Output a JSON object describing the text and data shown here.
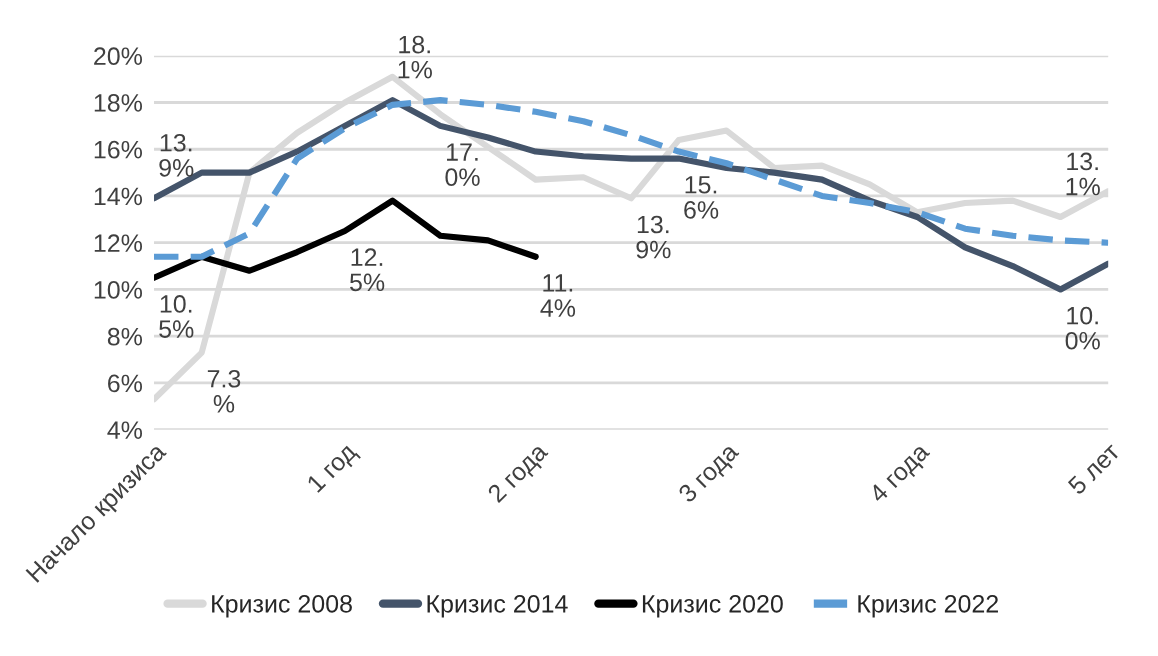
{
  "chart_data": {
    "type": "line",
    "categories": [
      "Начало кризиса",
      null,
      null,
      null,
      "1 год",
      null,
      null,
      null,
      "2 года",
      null,
      null,
      null,
      "3 года",
      null,
      null,
      null,
      "4 года",
      null,
      null,
      null,
      "5 лет"
    ],
    "ylim": [
      4,
      20
    ],
    "yticks": [
      {
        "value": 4,
        "label": "4%"
      },
      {
        "value": 6,
        "label": "6%"
      },
      {
        "value": 8,
        "label": "8%"
      },
      {
        "value": 10,
        "label": "10%"
      },
      {
        "value": 12,
        "label": "12%"
      },
      {
        "value": 14,
        "label": "14%"
      },
      {
        "value": 16,
        "label": "16%"
      },
      {
        "value": 18,
        "label": "18%"
      },
      {
        "value": 20,
        "label": "20%"
      }
    ],
    "grid": "y",
    "legend": "bottom",
    "series": [
      {
        "name": "Кризис 2008",
        "color": "#d9d9d9",
        "line_style": "solid",
        "values": [
          5.3,
          7.3,
          15.0,
          16.7,
          18.0,
          19.1,
          17.5,
          16.1,
          14.7,
          14.8,
          13.9,
          16.4,
          16.8,
          15.2,
          15.3,
          14.5,
          13.3,
          13.7,
          13.8,
          13.1,
          14.2
        ],
        "value_labels": [
          null,
          "7.3%",
          null,
          null,
          null,
          null,
          null,
          null,
          null,
          null,
          "13.9%",
          null,
          null,
          null,
          null,
          null,
          null,
          null,
          null,
          "13.1%",
          null
        ]
      },
      {
        "name": "Кризис 2014",
        "color": "#44546a",
        "line_style": "solid",
        "values": [
          13.9,
          15.0,
          15.0,
          15.9,
          17.0,
          18.1,
          17.0,
          16.5,
          15.9,
          15.7,
          15.6,
          15.6,
          15.2,
          15.0,
          14.7,
          13.8,
          13.1,
          11.8,
          11.0,
          10.0,
          11.1
        ],
        "value_labels": [
          "13.9%",
          null,
          null,
          null,
          null,
          "18.1%",
          "17.0%",
          null,
          null,
          null,
          null,
          "15.6%",
          null,
          null,
          null,
          null,
          null,
          null,
          null,
          "10.0%",
          null
        ]
      },
      {
        "name": "Кризис 2020",
        "color": "#000000",
        "line_style": "solid",
        "values": [
          10.5,
          11.4,
          10.8,
          11.6,
          12.5,
          13.8,
          12.3,
          12.1,
          11.4,
          null,
          null,
          null,
          null,
          null,
          null,
          null,
          null,
          null,
          null,
          null,
          null
        ],
        "value_labels": [
          "10.5%",
          null,
          null,
          null,
          "12.5%",
          null,
          null,
          null,
          "11.4%",
          null,
          null,
          null,
          null,
          null,
          null,
          null,
          null,
          null,
          null,
          null,
          null
        ]
      },
      {
        "name": "Кризис 2022",
        "color": "#5b9bd5",
        "line_style": "dashed",
        "values": [
          11.4,
          11.4,
          12.4,
          15.6,
          16.9,
          17.9,
          18.1,
          17.9,
          17.6,
          17.2,
          16.6,
          15.9,
          15.4,
          14.7,
          14.0,
          13.7,
          13.3,
          12.6,
          12.3,
          12.1,
          12.0
        ]
      }
    ]
  }
}
